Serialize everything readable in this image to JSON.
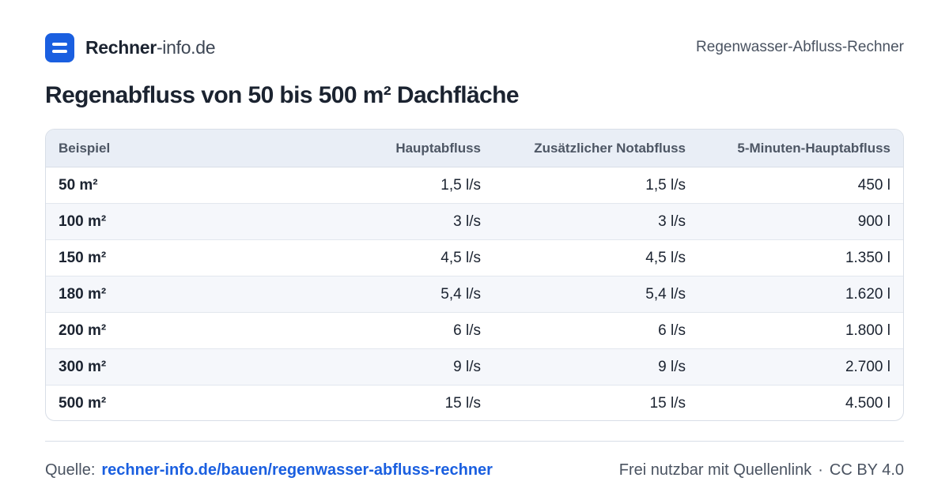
{
  "header": {
    "brand_bold": "Rechner",
    "brand_rest": "-info.de",
    "tool_name": "Regenwasser-Abfluss-Rechner"
  },
  "title": "Regenabfluss von 50 bis 500 m² Dachfläche",
  "table": {
    "columns": [
      "Beispiel",
      "Hauptabfluss",
      "Zusätzlicher Notabfluss",
      "5-Minuten-Hauptabfluss"
    ],
    "rows": [
      [
        "50 m²",
        "1,5 l/s",
        "1,5 l/s",
        "450 l"
      ],
      [
        "100 m²",
        "3 l/s",
        "3 l/s",
        "900 l"
      ],
      [
        "150 m²",
        "4,5 l/s",
        "4,5 l/s",
        "1.350 l"
      ],
      [
        "180 m²",
        "5,4 l/s",
        "5,4 l/s",
        "1.620 l"
      ],
      [
        "200 m²",
        "6 l/s",
        "6 l/s",
        "1.800 l"
      ],
      [
        "300 m²",
        "9 l/s",
        "9 l/s",
        "2.700 l"
      ],
      [
        "500 m²",
        "15 l/s",
        "15 l/s",
        "4.500 l"
      ]
    ]
  },
  "footer": {
    "source_label": "Quelle:",
    "source_link": "rechner-info.de/bauen/regenwasser-abfluss-rechner",
    "license_text": "Frei nutzbar mit Quellenlink",
    "separator": "·",
    "license": "CC BY 4.0"
  },
  "colors": {
    "accent": "#1a5fe0",
    "header_row": "#e9eef6",
    "alt_row": "#f5f7fb"
  }
}
